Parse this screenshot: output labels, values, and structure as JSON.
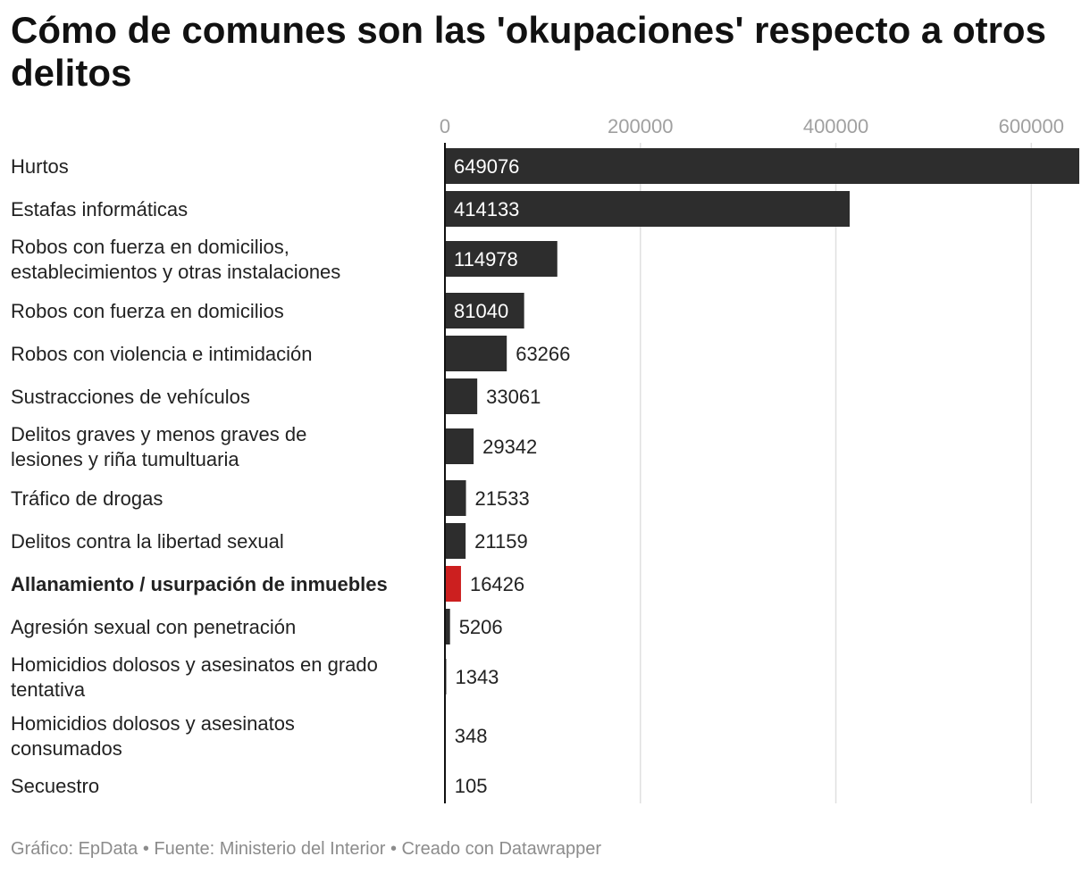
{
  "chart_data": {
    "type": "bar",
    "orientation": "horizontal",
    "title": "Cómo de comunes son las 'okupaciones' respecto a otros delitos",
    "categories": [
      "Hurtos",
      "Estafas informáticas",
      "Robos con fuerza en domicilios, establecimientos y otras instalaciones",
      "Robos con fuerza en domicilios",
      "Robos con violencia e intimidación",
      "Sustracciones de vehículos",
      "Delitos graves y menos graves de lesiones y riña tumultuaria",
      "Tráfico de drogas",
      "Delitos contra la libertad sexual",
      "Allanamiento / usurpación de inmuebles",
      "Agresión sexual con penetración",
      "Homicidios dolosos y asesinatos en grado tentativa",
      "Homicidios dolosos y asesinatos consumados",
      "Secuestro"
    ],
    "values": [
      649076,
      414133,
      114978,
      81040,
      63266,
      33061,
      29342,
      21533,
      21159,
      16426,
      5206,
      1343,
      348,
      105
    ],
    "value_labels": [
      "649076",
      "414133",
      "114978",
      "81040",
      "63266",
      "33061",
      "29342",
      "21533",
      "21159",
      "16426",
      "5206",
      "1343",
      "348",
      "105"
    ],
    "highlight_index": 9,
    "xticks": [
      0,
      200000,
      400000,
      600000
    ],
    "xtick_labels": [
      "0",
      "200000",
      "400000",
      "600000"
    ],
    "xlim": [
      0,
      649076
    ],
    "grid": true,
    "xlabel": "",
    "ylabel": ""
  },
  "colors": {
    "bar": "#2d2d2d",
    "highlight": "#cc1f1f",
    "grid": "#e0e0e0",
    "axis": "#111111",
    "label_inside": "#ffffff",
    "label_outside": "#222222"
  },
  "footer": {
    "text": "Gráfico: EpData • Fuente: Ministerio del Interior • Creado con Datawrapper"
  }
}
